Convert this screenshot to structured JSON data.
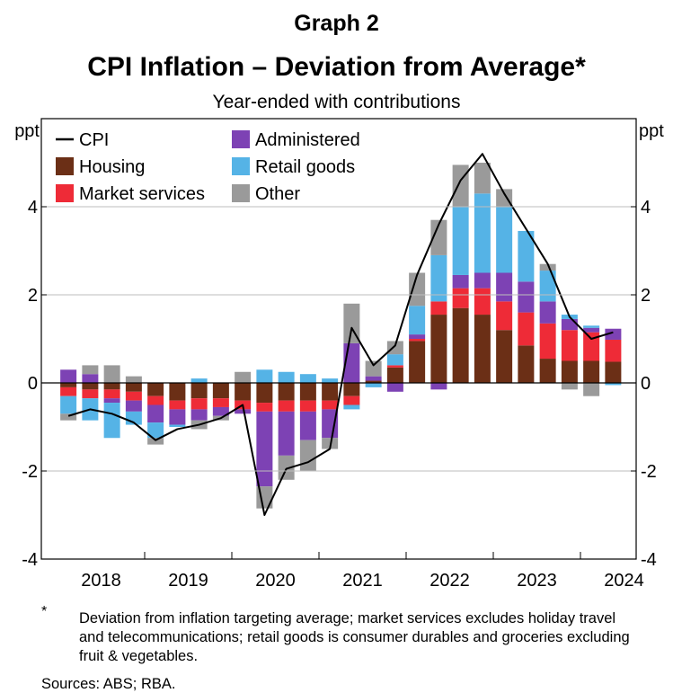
{
  "header": {
    "graph_number": "Graph 2",
    "title": "CPI Inflation – Deviation from Average*",
    "subtitle": "Year-ended with contributions"
  },
  "footnote": {
    "marker": "*",
    "text": "Deviation from inflation targeting average; market services excludes holiday travel and telecommunications; retail goods is consumer durables and groceries excluding fruit & vegetables."
  },
  "sources": "Sources: ABS; RBA.",
  "colors": {
    "housing": "#6b2f16",
    "market_services": "#ee2b37",
    "administered": "#7d42b4",
    "retail_goods": "#55b3e6",
    "other": "#9a9a9a",
    "cpi": "#000000"
  },
  "chart_data": {
    "type": "bar",
    "stacked": true,
    "yunit_left": "ppt",
    "yunit_right": "ppt",
    "ylim": [
      -4,
      6
    ],
    "yticks": [
      -4,
      -2,
      0,
      2,
      4
    ],
    "year_labels": [
      "2018",
      "2019",
      "2020",
      "2021",
      "2022",
      "2023",
      "2024"
    ],
    "categories": [
      "Mar-18",
      "Jun-18",
      "Sep-18",
      "Dec-18",
      "Mar-19",
      "Jun-19",
      "Sep-19",
      "Dec-19",
      "Mar-20",
      "Jun-20",
      "Sep-20",
      "Dec-20",
      "Mar-21",
      "Jun-21",
      "Sep-21",
      "Dec-21",
      "Mar-22",
      "Jun-22",
      "Sep-22",
      "Dec-22",
      "Mar-23",
      "Jun-23",
      "Sep-23",
      "Dec-23",
      "Mar-24",
      "Jun-24"
    ],
    "legend_placement": "top-left",
    "series": [
      {
        "name": "Housing",
        "key": "housing",
        "values": [
          -0.1,
          -0.15,
          -0.15,
          -0.2,
          -0.3,
          -0.4,
          -0.35,
          -0.35,
          -0.4,
          -0.45,
          -0.4,
          -0.4,
          -0.4,
          -0.3,
          0.05,
          0.35,
          0.95,
          1.55,
          1.7,
          1.55,
          1.2,
          0.85,
          0.55,
          0.5,
          0.5,
          0.48
        ]
      },
      {
        "name": "Market services",
        "key": "market_services",
        "values": [
          -0.2,
          -0.2,
          -0.2,
          -0.2,
          -0.2,
          -0.2,
          -0.25,
          -0.2,
          -0.2,
          -0.2,
          -0.25,
          -0.25,
          -0.2,
          -0.2,
          0.0,
          0.05,
          0.05,
          0.3,
          0.45,
          0.6,
          0.65,
          0.75,
          0.8,
          0.7,
          0.65,
          0.5
        ]
      },
      {
        "name": "Administered",
        "key": "administered",
        "values": [
          0.3,
          0.2,
          -0.1,
          -0.25,
          -0.4,
          -0.35,
          -0.25,
          -0.2,
          -0.1,
          -1.7,
          -1.0,
          -0.65,
          -0.65,
          0.9,
          0.1,
          -0.2,
          0.1,
          -0.15,
          0.3,
          0.35,
          0.65,
          0.7,
          0.5,
          0.25,
          0.1,
          0.25
        ]
      },
      {
        "name": "Retail goods",
        "key": "retail_goods",
        "values": [
          -0.4,
          -0.5,
          -0.8,
          -0.3,
          -0.35,
          -0.05,
          0.1,
          0.0,
          0.0,
          0.3,
          0.25,
          0.2,
          0.1,
          -0.1,
          -0.1,
          0.25,
          0.65,
          1.05,
          1.55,
          1.8,
          1.5,
          1.15,
          0.7,
          0.1,
          0.05,
          -0.05
        ]
      },
      {
        "name": "Other",
        "key": "other",
        "values": [
          -0.15,
          0.2,
          0.4,
          0.15,
          -0.15,
          0.0,
          -0.2,
          -0.1,
          0.25,
          -0.5,
          -0.55,
          -0.7,
          -0.25,
          0.9,
          0.35,
          0.3,
          0.75,
          0.8,
          0.95,
          0.7,
          0.4,
          0.0,
          0.15,
          -0.15,
          -0.3,
          0.0
        ]
      },
      {
        "name": "CPI",
        "key": "cpi",
        "type": "line",
        "values": [
          -0.75,
          -0.6,
          -0.7,
          -0.9,
          -1.3,
          -1.05,
          -0.95,
          -0.8,
          -0.5,
          -3.0,
          -1.95,
          -1.8,
          -1.5,
          1.25,
          0.4,
          0.85,
          2.45,
          3.6,
          4.6,
          5.2,
          4.3,
          3.5,
          2.7,
          1.5,
          1.0,
          1.15
        ]
      }
    ]
  }
}
